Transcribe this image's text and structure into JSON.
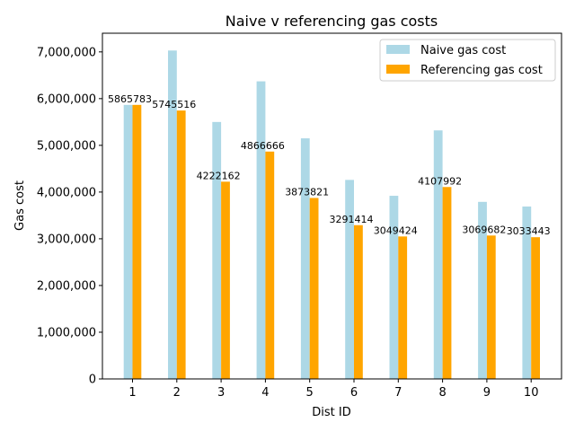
{
  "chart_data": {
    "type": "bar",
    "title": "Naive v referencing gas costs",
    "xlabel": "Dist ID",
    "ylabel": "Gas cost",
    "categories": [
      "1",
      "2",
      "3",
      "4",
      "5",
      "6",
      "7",
      "8",
      "9",
      "10"
    ],
    "ylim": [
      0,
      7400000
    ],
    "yticks": [
      0,
      1000000,
      2000000,
      3000000,
      4000000,
      5000000,
      6000000,
      7000000
    ],
    "ytick_labels": [
      "0",
      "1,000,000",
      "2,000,000",
      "3,000,000",
      "4,000,000",
      "5,000,000",
      "6,000,000",
      "7,000,000"
    ],
    "legend_position": "top-right",
    "grid": false,
    "series": [
      {
        "name": "Naive gas cost",
        "color": "#add8e6",
        "values": [
          5865783,
          7030000,
          5500000,
          6370000,
          5150000,
          4260000,
          3920000,
          5320000,
          3790000,
          3690000
        ]
      },
      {
        "name": "Referencing gas cost",
        "color": "#ffa500",
        "values": [
          5865783,
          5745516,
          4222162,
          4866666,
          3873821,
          3291414,
          3049424,
          4107992,
          3069682,
          3033443
        ],
        "data_labels": [
          "5865783",
          "5745516",
          "4222162",
          "4866666",
          "3873821",
          "3291414",
          "3049424",
          "4107992",
          "3069682",
          "3033443"
        ]
      }
    ]
  }
}
